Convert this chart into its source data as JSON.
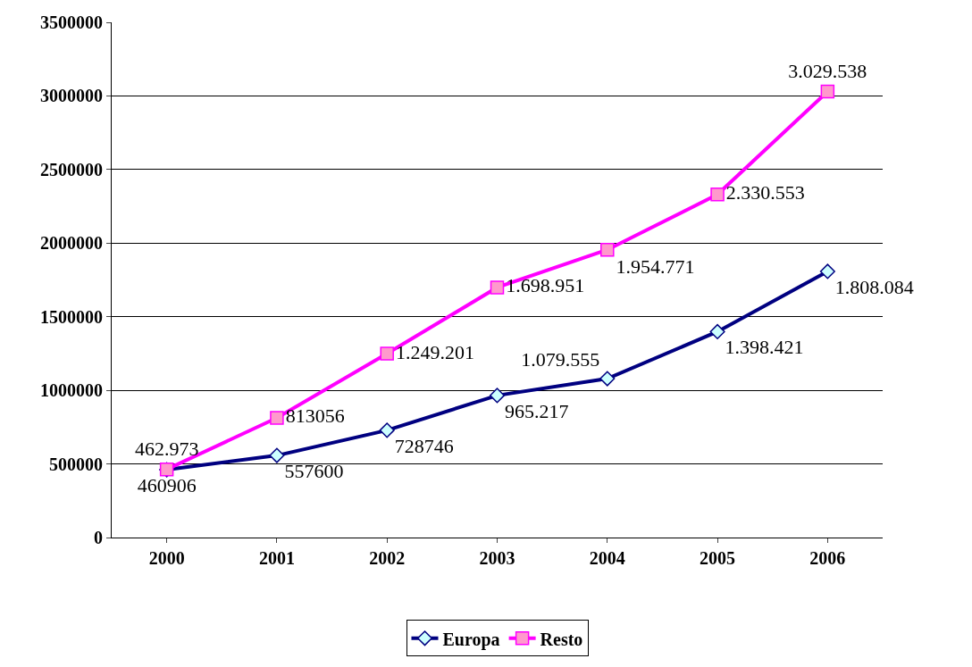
{
  "chart_data": {
    "type": "line",
    "categories": [
      "2000",
      "2001",
      "2002",
      "2003",
      "2004",
      "2005",
      "2006"
    ],
    "series": [
      {
        "name": "Europa",
        "color": "#000080",
        "marker": "diamond",
        "values": [
          460906,
          557600,
          728746,
          965217,
          1079555,
          1398421,
          1808084
        ],
        "value_labels": [
          "460906",
          "557600",
          "728746",
          "965.217",
          "1.079.555",
          "1.398.421",
          "1.808.084"
        ]
      },
      {
        "name": "Resto",
        "color": "#ff00ff",
        "marker": "square",
        "values": [
          462973,
          813056,
          1249201,
          1698951,
          1954771,
          2330553,
          3029538
        ],
        "value_labels": [
          "462.973",
          "813056",
          "1.249.201",
          "1.698.951",
          "1.954.771",
          "2.330.553",
          "3.029.538"
        ]
      }
    ],
    "ylim": [
      0,
      3500000
    ],
    "yticks": [
      0,
      500000,
      1000000,
      1500000,
      2000000,
      2500000,
      3000000,
      3500000
    ],
    "grid": "y",
    "legend": "bottom",
    "line_style": "solid"
  }
}
